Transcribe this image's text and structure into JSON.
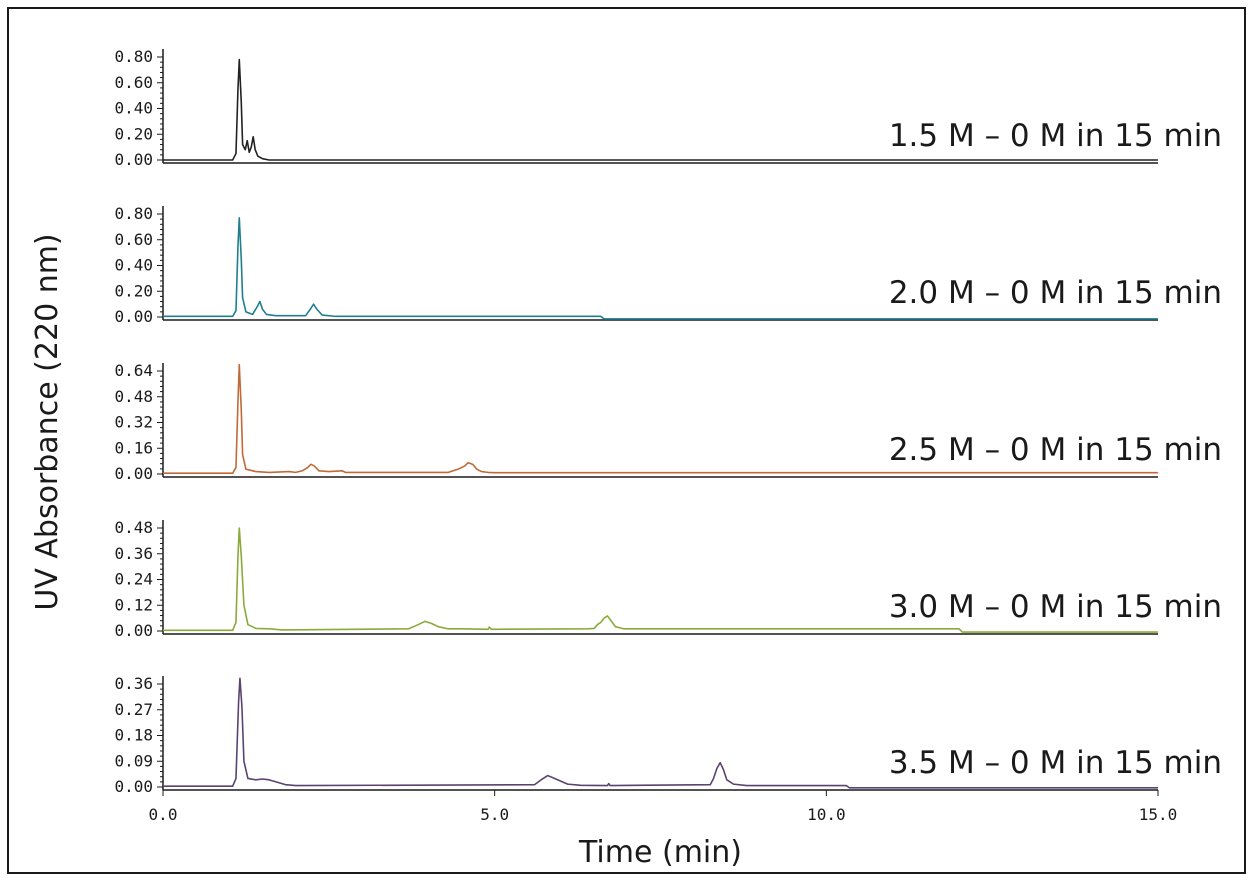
{
  "chart_data": {
    "type": "line",
    "title": "",
    "xlabel": "Time (min)",
    "ylabel": "UV Absorbance (220 nm)",
    "xlim": [
      0,
      15
    ],
    "x_ticks": [
      "0.0",
      "5.0",
      "10.0",
      "15.0"
    ],
    "x_tick_values": [
      0,
      5,
      10,
      15
    ],
    "grid": false,
    "panels": [
      {
        "label": "1.5 M – 0 M in 15 min",
        "color": "#222222",
        "ylim": [
          0,
          0.8
        ],
        "y_ticks": [
          "0.00",
          "0.20",
          "0.40",
          "0.60",
          "0.80"
        ],
        "y_tick_values": [
          0,
          0.2,
          0.4,
          0.6,
          0.8
        ],
        "points": [
          [
            0,
            0
          ],
          [
            1.05,
            0
          ],
          [
            1.1,
            0.05
          ],
          [
            1.13,
            0.55
          ],
          [
            1.15,
            0.78
          ],
          [
            1.18,
            0.45
          ],
          [
            1.2,
            0.12
          ],
          [
            1.24,
            0.08
          ],
          [
            1.27,
            0.15
          ],
          [
            1.3,
            0.06
          ],
          [
            1.33,
            0.1
          ],
          [
            1.36,
            0.18
          ],
          [
            1.39,
            0.08
          ],
          [
            1.43,
            0.03
          ],
          [
            1.5,
            0.01
          ],
          [
            1.6,
            0
          ],
          [
            15,
            0
          ]
        ]
      },
      {
        "label": "2.0 M – 0 M in 15 min",
        "color": "#1f7f8f",
        "ylim": [
          0,
          0.8
        ],
        "y_ticks": [
          "0.00",
          "0.20",
          "0.40",
          "0.60",
          "0.80"
        ],
        "y_tick_values": [
          0,
          0.2,
          0.4,
          0.6,
          0.8
        ],
        "points": [
          [
            0,
            0.005
          ],
          [
            1.05,
            0.005
          ],
          [
            1.1,
            0.05
          ],
          [
            1.13,
            0.55
          ],
          [
            1.15,
            0.77
          ],
          [
            1.18,
            0.45
          ],
          [
            1.2,
            0.15
          ],
          [
            1.25,
            0.04
          ],
          [
            1.35,
            0.02
          ],
          [
            1.42,
            0.08
          ],
          [
            1.46,
            0.12
          ],
          [
            1.5,
            0.06
          ],
          [
            1.56,
            0.02
          ],
          [
            1.7,
            0.01
          ],
          [
            2.15,
            0.01
          ],
          [
            2.22,
            0.06
          ],
          [
            2.27,
            0.1
          ],
          [
            2.32,
            0.06
          ],
          [
            2.4,
            0.015
          ],
          [
            2.6,
            0.005
          ],
          [
            6.6,
            0.005
          ],
          [
            6.65,
            -0.015
          ],
          [
            15,
            -0.015
          ]
        ]
      },
      {
        "label": "2.5 M – 0 M in 15 min",
        "color": "#c06a38",
        "ylim": [
          0,
          0.64
        ],
        "y_ticks": [
          "0.00",
          "0.16",
          "0.32",
          "0.48",
          "0.64"
        ],
        "y_tick_values": [
          0,
          0.16,
          0.32,
          0.48,
          0.64
        ],
        "points": [
          [
            0,
            0.005
          ],
          [
            1.05,
            0.005
          ],
          [
            1.1,
            0.04
          ],
          [
            1.13,
            0.45
          ],
          [
            1.15,
            0.68
          ],
          [
            1.18,
            0.4
          ],
          [
            1.2,
            0.12
          ],
          [
            1.25,
            0.03
          ],
          [
            1.4,
            0.015
          ],
          [
            1.6,
            0.01
          ],
          [
            1.9,
            0.015
          ],
          [
            2.0,
            0.01
          ],
          [
            2.1,
            0.02
          ],
          [
            2.18,
            0.04
          ],
          [
            2.23,
            0.06
          ],
          [
            2.28,
            0.05
          ],
          [
            2.35,
            0.02
          ],
          [
            2.5,
            0.015
          ],
          [
            2.7,
            0.02
          ],
          [
            2.75,
            0.01
          ],
          [
            4.3,
            0.01
          ],
          [
            4.45,
            0.03
          ],
          [
            4.55,
            0.05
          ],
          [
            4.6,
            0.07
          ],
          [
            4.67,
            0.06
          ],
          [
            4.73,
            0.03
          ],
          [
            4.8,
            0.015
          ],
          [
            4.9,
            0.01
          ],
          [
            5.0,
            0.008
          ],
          [
            15,
            0.008
          ]
        ]
      },
      {
        "label": "3.0 M – 0 M in 15 min",
        "color": "#8aaa3a",
        "ylim": [
          0,
          0.48
        ],
        "y_ticks": [
          "0.00",
          "0.12",
          "0.24",
          "0.36",
          "0.48"
        ],
        "y_tick_values": [
          0,
          0.12,
          0.24,
          0.36,
          0.48
        ],
        "points": [
          [
            0,
            0.003
          ],
          [
            1.05,
            0.003
          ],
          [
            1.1,
            0.04
          ],
          [
            1.13,
            0.35
          ],
          [
            1.15,
            0.48
          ],
          [
            1.18,
            0.35
          ],
          [
            1.22,
            0.12
          ],
          [
            1.28,
            0.03
          ],
          [
            1.4,
            0.012
          ],
          [
            1.6,
            0.01
          ],
          [
            1.8,
            0.005
          ],
          [
            3.7,
            0.01
          ],
          [
            3.85,
            0.03
          ],
          [
            3.95,
            0.045
          ],
          [
            4.05,
            0.035
          ],
          [
            4.15,
            0.02
          ],
          [
            4.3,
            0.01
          ],
          [
            4.5,
            0.01
          ],
          [
            4.9,
            0.008
          ],
          [
            4.92,
            0.018
          ],
          [
            4.95,
            0.008
          ],
          [
            6.4,
            0.01
          ],
          [
            6.5,
            0.012
          ],
          [
            6.55,
            0.03
          ],
          [
            6.6,
            0.04
          ],
          [
            6.65,
            0.06
          ],
          [
            6.7,
            0.07
          ],
          [
            6.75,
            0.05
          ],
          [
            6.82,
            0.02
          ],
          [
            6.95,
            0.01
          ],
          [
            12.0,
            0.01
          ],
          [
            12.05,
            -0.005
          ],
          [
            15,
            -0.005
          ]
        ]
      },
      {
        "label": "3.5 M – 0 M in 15 min",
        "color": "#5a4370",
        "ylim": [
          0,
          0.36
        ],
        "y_ticks": [
          "0.00",
          "0.09",
          "0.18",
          "0.27",
          "0.36"
        ],
        "y_tick_values": [
          0,
          0.09,
          0.18,
          0.27,
          0.36
        ],
        "points": [
          [
            0,
            0.003
          ],
          [
            1.05,
            0.003
          ],
          [
            1.1,
            0.03
          ],
          [
            1.14,
            0.3
          ],
          [
            1.16,
            0.38
          ],
          [
            1.19,
            0.28
          ],
          [
            1.22,
            0.09
          ],
          [
            1.28,
            0.03
          ],
          [
            1.4,
            0.025
          ],
          [
            1.5,
            0.028
          ],
          [
            1.6,
            0.025
          ],
          [
            1.75,
            0.015
          ],
          [
            1.85,
            0.008
          ],
          [
            2.0,
            0.005
          ],
          [
            5.6,
            0.008
          ],
          [
            5.7,
            0.025
          ],
          [
            5.8,
            0.04
          ],
          [
            5.9,
            0.03
          ],
          [
            6.0,
            0.02
          ],
          [
            6.1,
            0.01
          ],
          [
            6.3,
            0.006
          ],
          [
            6.7,
            0.005
          ],
          [
            6.72,
            0.012
          ],
          [
            6.74,
            0.005
          ],
          [
            8.25,
            0.008
          ],
          [
            8.3,
            0.03
          ],
          [
            8.35,
            0.065
          ],
          [
            8.4,
            0.085
          ],
          [
            8.45,
            0.06
          ],
          [
            8.5,
            0.025
          ],
          [
            8.6,
            0.01
          ],
          [
            8.8,
            0.005
          ],
          [
            10.3,
            0.005
          ],
          [
            10.35,
            -0.003
          ],
          [
            15,
            -0.003
          ]
        ]
      }
    ]
  }
}
